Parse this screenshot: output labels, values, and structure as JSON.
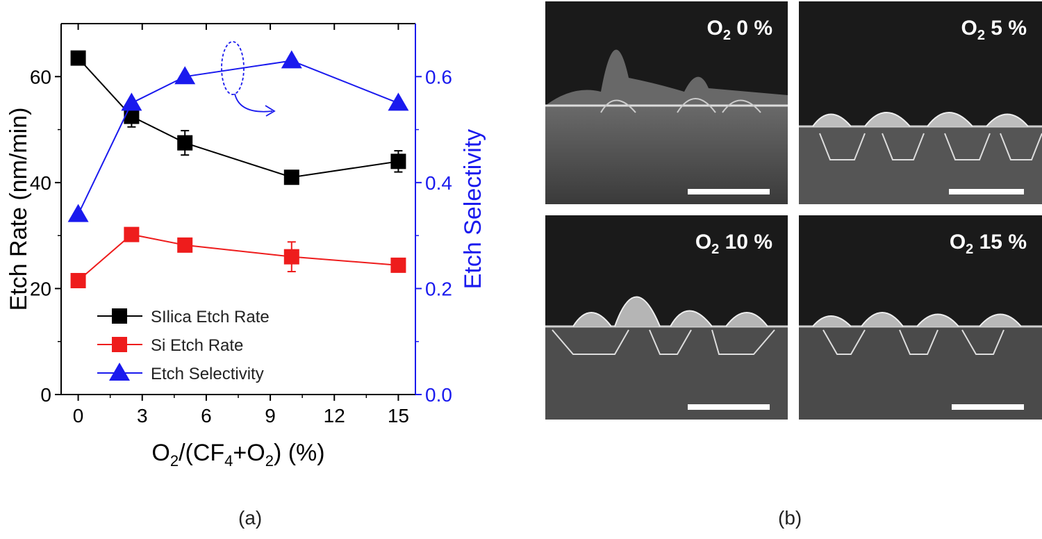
{
  "chart_data": {
    "type": "line",
    "xlabel_parts": {
      "o": "O",
      "sub2": "2",
      "mid": "/(CF",
      "sub4": "4",
      "plus": "+O",
      "sub2b": "2",
      "end": ") (%)"
    },
    "ylabel": "Etch Rate (nm/min)",
    "y2label": "Etch Selectivity",
    "xlim": [
      -0.8,
      15.8
    ],
    "ylim": [
      0,
      70
    ],
    "y2lim": [
      0,
      0.7
    ],
    "xticks": [
      "0",
      "3",
      "6",
      "9",
      "12",
      "15"
    ],
    "xtick_values": [
      0,
      3,
      6,
      9,
      12,
      15
    ],
    "yticks": [
      "0",
      "20",
      "40",
      "60"
    ],
    "ytick_values": [
      0,
      20,
      40,
      60
    ],
    "y2ticks": [
      "0.0",
      "0.2",
      "0.4",
      "0.6"
    ],
    "y2tick_values": [
      0,
      0.2,
      0.4,
      0.6
    ],
    "series": [
      {
        "name": "SIlica Etch Rate",
        "axis": "left",
        "marker": "square",
        "color": "#000000",
        "x": [
          0,
          2.5,
          5,
          10,
          15
        ],
        "y": [
          63.5,
          52.5,
          47.5,
          41,
          44
        ],
        "err": [
          0,
          2,
          2.3,
          1.2,
          2
        ]
      },
      {
        "name": "Si Etch Rate",
        "axis": "left",
        "marker": "square",
        "color": "#ee1c1c",
        "x": [
          0,
          2.5,
          5,
          10,
          15
        ],
        "y": [
          21.5,
          30.2,
          28.2,
          26,
          24.4
        ],
        "err": [
          0,
          1,
          0,
          2.8,
          0
        ]
      },
      {
        "name": "Etch Selectivity",
        "axis": "right",
        "marker": "triangle",
        "color": "#1a1aee",
        "x": [
          0,
          2.5,
          5,
          10,
          15
        ],
        "y": [
          0.34,
          0.55,
          0.6,
          0.63,
          0.55
        ],
        "err": [
          0,
          0,
          0,
          0,
          0
        ]
      }
    ],
    "legend_position": "bottom-left",
    "annotation": "dashed ellipse with arrow pointing to right axis",
    "axis_colors": {
      "left": "#000000",
      "right": "#1a1aee"
    }
  },
  "images": [
    {
      "label_o": "O",
      "label_sub": "2",
      "label_value": " 0 %"
    },
    {
      "label_o": "O",
      "label_sub": "2",
      "label_value": " 5 %"
    },
    {
      "label_o": "O",
      "label_sub": "2",
      "label_value": " 10 %"
    },
    {
      "label_o": "O",
      "label_sub": "2",
      "label_value": " 15 %"
    }
  ],
  "captions": {
    "a": "(a)",
    "b": "(b)"
  }
}
